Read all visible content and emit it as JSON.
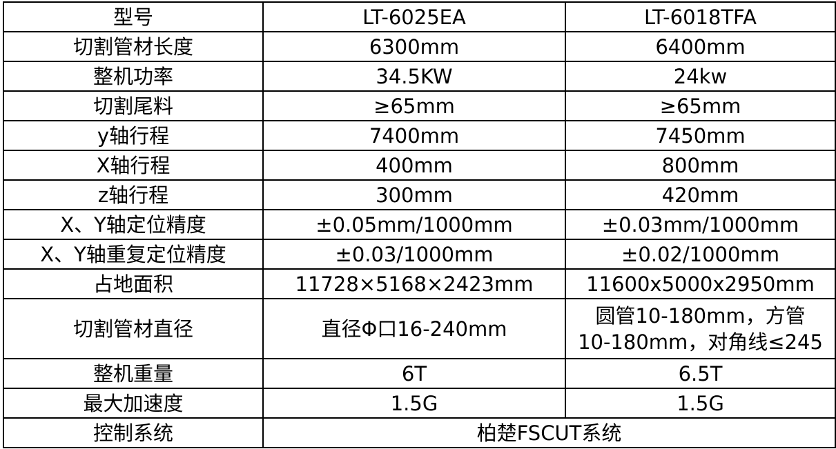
{
  "table": {
    "rows": [
      {
        "label": "型号",
        "a": "LT-6025EA",
        "b": "LT-6018TFA"
      },
      {
        "label": "切割管材长度",
        "a": "6300mm",
        "b": "6400mm"
      },
      {
        "label": "整机功率",
        "a": "34.5KW",
        "b": "24kw"
      },
      {
        "label": "切割尾料",
        "a": "≥65mm",
        "b": "≥65mm"
      },
      {
        "label": "y轴行程",
        "a": "7400mm",
        "b": "7450mm"
      },
      {
        "label": "X轴行程",
        "a": "400mm",
        "b": "800mm"
      },
      {
        "label": "z轴行程",
        "a": "300mm",
        "b": "420mm"
      },
      {
        "label": "X、Y轴定位精度",
        "a": "±0.05mm/1000mm",
        "b": "±0.03mm/1000mm"
      },
      {
        "label": "X、Y轴重复定位精度",
        "a": "±0.03/1000mm",
        "b": "±0.02/1000mm"
      },
      {
        "label": "占地面积",
        "a": "11728×5168×2423mm",
        "b": "11600x5000x2950mm"
      },
      {
        "label": "切割管材直径",
        "a": "直径Φ口16-240mm",
        "b_lines": [
          "圆管10-180mm，方管",
          "10-180mm，对角线≤245"
        ]
      },
      {
        "label": "整机重量",
        "a": "6T",
        "b": "6.5T"
      },
      {
        "label": "最大加速度",
        "a": "1.5G",
        "b": "1.5G"
      },
      {
        "label": "控制系统",
        "value": "柏楚FSCUT系统"
      }
    ]
  }
}
